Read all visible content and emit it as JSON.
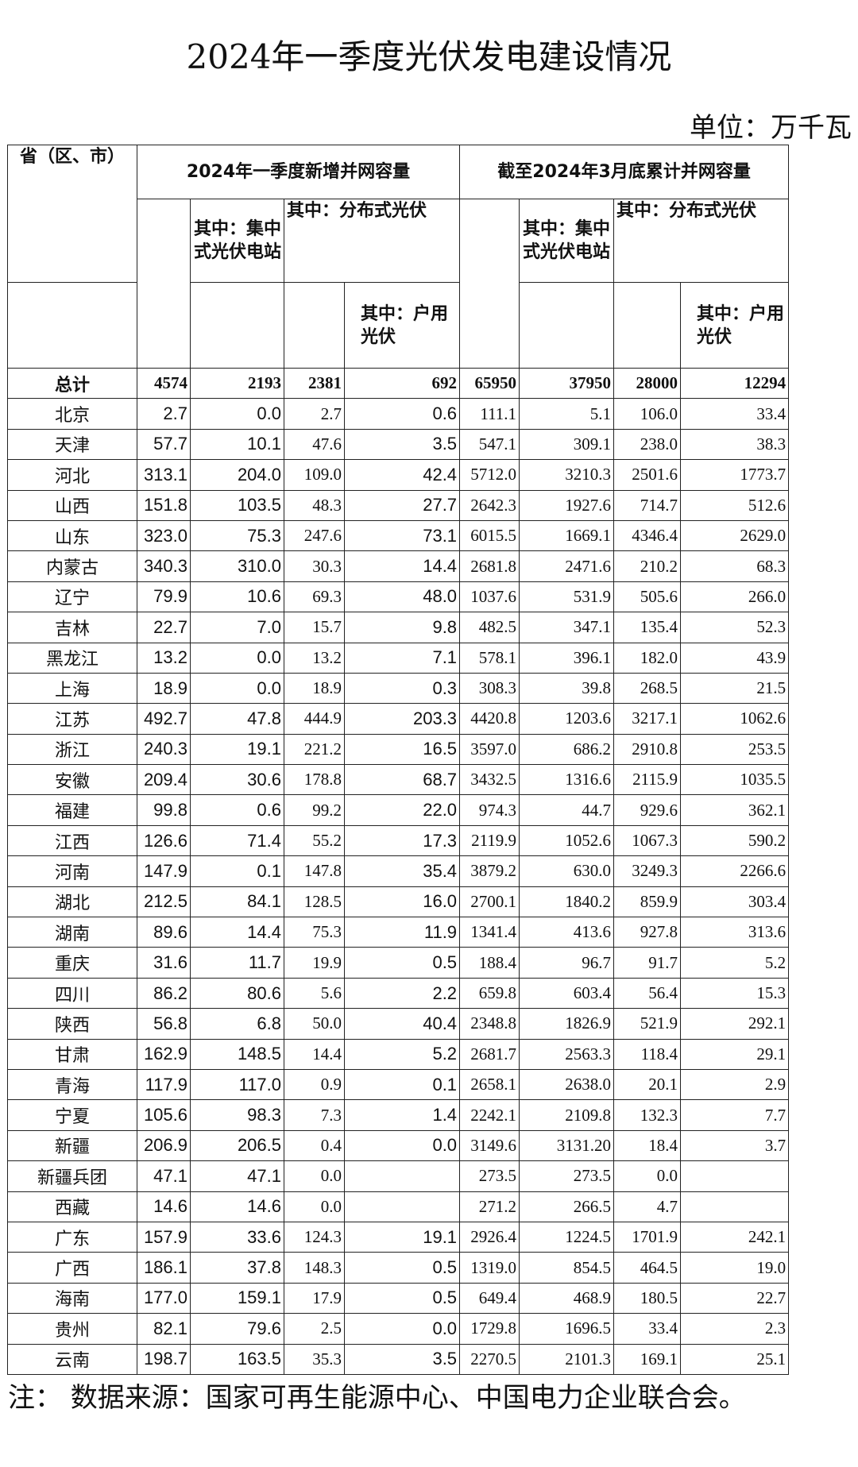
{
  "title": "2024年一季度光伏发电建设情况",
  "unit": "单位：万千瓦",
  "headers": {
    "province": "省（区、市）",
    "new_group": "2024年一季度新增并网容量",
    "cum_group": "截至2024年3月底累计并网容量",
    "new_central": "其中：集中式光伏电站",
    "new_distributed": "其中：分布式光伏",
    "new_household": "其中：户用光伏",
    "cum_central": "其中：集中式光伏电站",
    "cum_distributed": "其中：分布式光伏",
    "cum_household": "其中：户用光伏"
  },
  "table": {
    "rows": [
      [
        "总计",
        "4574",
        "2193",
        "2381",
        "692",
        "65950",
        "37950",
        "28000",
        "12294"
      ],
      [
        "北京",
        "2.7",
        "0.0",
        "2.7",
        "0.6",
        "111.1",
        "5.1",
        "106.0",
        "33.4"
      ],
      [
        "天津",
        "57.7",
        "10.1",
        "47.6",
        "3.5",
        "547.1",
        "309.1",
        "238.0",
        "38.3"
      ],
      [
        "河北",
        "313.1",
        "204.0",
        "109.0",
        "42.4",
        "5712.0",
        "3210.3",
        "2501.6",
        "1773.7"
      ],
      [
        "山西",
        "151.8",
        "103.5",
        "48.3",
        "27.7",
        "2642.3",
        "1927.6",
        "714.7",
        "512.6"
      ],
      [
        "山东",
        "323.0",
        "75.3",
        "247.6",
        "73.1",
        "6015.5",
        "1669.1",
        "4346.4",
        "2629.0"
      ],
      [
        "内蒙古",
        "340.3",
        "310.0",
        "30.3",
        "14.4",
        "2681.8",
        "2471.6",
        "210.2",
        "68.3"
      ],
      [
        "辽宁",
        "79.9",
        "10.6",
        "69.3",
        "48.0",
        "1037.6",
        "531.9",
        "505.6",
        "266.0"
      ],
      [
        "吉林",
        "22.7",
        "7.0",
        "15.7",
        "9.8",
        "482.5",
        "347.1",
        "135.4",
        "52.3"
      ],
      [
        "黑龙江",
        "13.2",
        "0.0",
        "13.2",
        "7.1",
        "578.1",
        "396.1",
        "182.0",
        "43.9"
      ],
      [
        "上海",
        "18.9",
        "0.0",
        "18.9",
        "0.3",
        "308.3",
        "39.8",
        "268.5",
        "21.5"
      ],
      [
        "江苏",
        "492.7",
        "47.8",
        "444.9",
        "203.3",
        "4420.8",
        "1203.6",
        "3217.1",
        "1062.6"
      ],
      [
        "浙江",
        "240.3",
        "19.1",
        "221.2",
        "16.5",
        "3597.0",
        "686.2",
        "2910.8",
        "253.5"
      ],
      [
        "安徽",
        "209.4",
        "30.6",
        "178.8",
        "68.7",
        "3432.5",
        "1316.6",
        "2115.9",
        "1035.5"
      ],
      [
        "福建",
        "99.8",
        "0.6",
        "99.2",
        "22.0",
        "974.3",
        "44.7",
        "929.6",
        "362.1"
      ],
      [
        "江西",
        "126.6",
        "71.4",
        "55.2",
        "17.3",
        "2119.9",
        "1052.6",
        "1067.3",
        "590.2"
      ],
      [
        "河南",
        "147.9",
        "0.1",
        "147.8",
        "35.4",
        "3879.2",
        "630.0",
        "3249.3",
        "2266.6"
      ],
      [
        "湖北",
        "212.5",
        "84.1",
        "128.5",
        "16.0",
        "2700.1",
        "1840.2",
        "859.9",
        "303.4"
      ],
      [
        "湖南",
        "89.6",
        "14.4",
        "75.3",
        "11.9",
        "1341.4",
        "413.6",
        "927.8",
        "313.6"
      ],
      [
        "重庆",
        "31.6",
        "11.7",
        "19.9",
        "0.5",
        "188.4",
        "96.7",
        "91.7",
        "5.2"
      ],
      [
        "四川",
        "86.2",
        "80.6",
        "5.6",
        "2.2",
        "659.8",
        "603.4",
        "56.4",
        "15.3"
      ],
      [
        "陕西",
        "56.8",
        "6.8",
        "50.0",
        "40.4",
        "2348.8",
        "1826.9",
        "521.9",
        "292.1"
      ],
      [
        "甘肃",
        "162.9",
        "148.5",
        "14.4",
        "5.2",
        "2681.7",
        "2563.3",
        "118.4",
        "29.1"
      ],
      [
        "青海",
        "117.9",
        "117.0",
        "0.9",
        "0.1",
        "2658.1",
        "2638.0",
        "20.1",
        "2.9"
      ],
      [
        "宁夏",
        "105.6",
        "98.3",
        "7.3",
        "1.4",
        "2242.1",
        "2109.8",
        "132.3",
        "7.7"
      ],
      [
        "新疆",
        "206.9",
        "206.5",
        "0.4",
        "0.0",
        "3149.6",
        "3131.20",
        "18.4",
        "3.7"
      ],
      [
        "新疆兵团",
        "47.1",
        "47.1",
        "0.0",
        null,
        "273.5",
        "273.5",
        "0.0",
        null
      ],
      [
        "西藏",
        "14.6",
        "14.6",
        "0.0",
        null,
        "271.2",
        "266.5",
        "4.7",
        null
      ],
      [
        "广东",
        "157.9",
        "33.6",
        "124.3",
        "19.1",
        "2926.4",
        "1224.5",
        "1701.9",
        "242.1"
      ],
      [
        "广西",
        "186.1",
        "37.8",
        "148.3",
        "0.5",
        "1319.0",
        "854.5",
        "464.5",
        "19.0"
      ],
      [
        "海南",
        "177.0",
        "159.1",
        "17.9",
        "0.5",
        "649.4",
        "468.9",
        "180.5",
        "22.7"
      ],
      [
        "贵州",
        "82.1",
        "79.6",
        "2.5",
        "0.0",
        "1729.8",
        "1696.5",
        "33.4",
        "2.3"
      ],
      [
        "云南",
        "198.7",
        "163.5",
        "35.3",
        "3.5",
        "2270.5",
        "2101.3",
        "169.1",
        "25.1"
      ]
    ]
  },
  "note": "注：  数据来源：国家可再生能源中心、中国电力企业联合会。"
}
